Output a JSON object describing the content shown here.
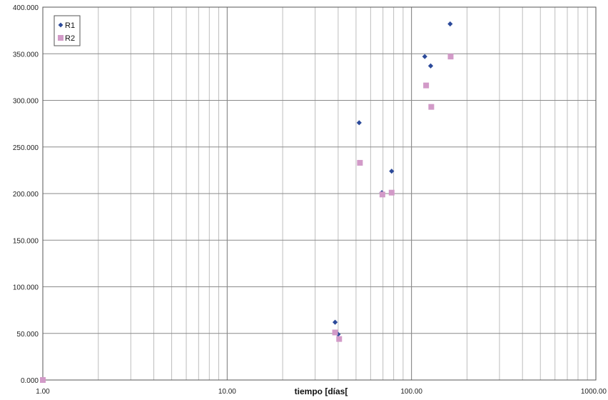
{
  "chart_data": {
    "type": "scatter",
    "title": "",
    "xlabel": "tiempo [días[",
    "ylabel": "",
    "x_scale": "log",
    "xlim": [
      1,
      1000
    ],
    "ylim": [
      0,
      400
    ],
    "x_tick_labels": [
      "1.00",
      "10.00",
      "100.00",
      "1000.00"
    ],
    "y_tick_labels": [
      "0.000",
      "50.000",
      "100.000",
      "150.000",
      "200.000",
      "250.000",
      "300.000",
      "350.000",
      "400.000"
    ],
    "grid": true,
    "legend_position": "top-left",
    "series": [
      {
        "name": "R1",
        "marker": "diamond",
        "color": "#2c4a9a",
        "x": [
          1.0,
          38.5,
          40.0,
          52.0,
          69.0,
          78.0,
          118.0,
          127.0,
          162.0
        ],
        "y": [
          0,
          62,
          49,
          276,
          201,
          224,
          347,
          337,
          382
        ]
      },
      {
        "name": "R2",
        "marker": "square",
        "color": "#d29ac8",
        "x": [
          1.0,
          38.5,
          40.5,
          52.5,
          69.5,
          78.0,
          120.0,
          128.0,
          163.0
        ],
        "y": [
          0,
          51,
          44,
          233,
          199,
          201,
          316,
          293,
          347
        ]
      }
    ]
  }
}
